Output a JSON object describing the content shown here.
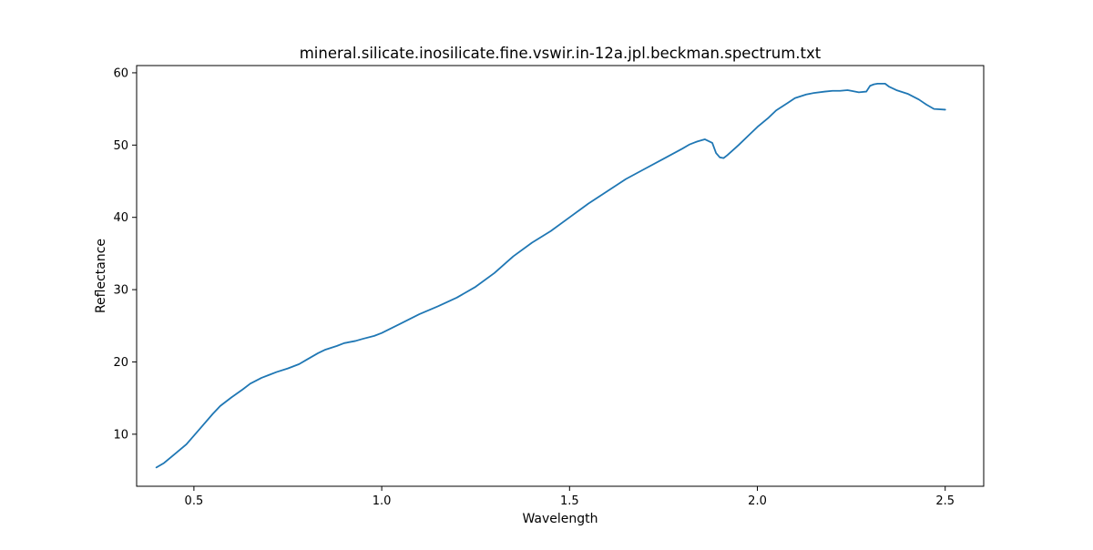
{
  "chart_data": {
    "type": "line",
    "title": "mineral.silicate.inosilicate.fine.vswir.in-12a.jpl.beckman.spectrum.txt",
    "xlabel": "Wavelength",
    "ylabel": "Reflectance",
    "xlim": [
      0.3475,
      2.6025
    ],
    "ylim": [
      2.8,
      61.0
    ],
    "xticks": [
      0.5,
      1.0,
      1.5,
      2.0,
      2.5
    ],
    "xtick_labels": [
      "0.5",
      "1.0",
      "1.5",
      "2.0",
      "2.5"
    ],
    "yticks": [
      10,
      20,
      30,
      40,
      50,
      60
    ],
    "ytick_labels": [
      "10",
      "20",
      "30",
      "40",
      "50",
      "60"
    ],
    "grid": false,
    "series": [
      {
        "color": "#1f77b4",
        "x": [
          0.4,
          0.42,
          0.45,
          0.48,
          0.5,
          0.52,
          0.55,
          0.57,
          0.6,
          0.63,
          0.65,
          0.68,
          0.7,
          0.72,
          0.75,
          0.78,
          0.8,
          0.83,
          0.85,
          0.88,
          0.9,
          0.93,
          0.95,
          0.98,
          1.0,
          1.05,
          1.1,
          1.15,
          1.2,
          1.25,
          1.3,
          1.35,
          1.4,
          1.45,
          1.5,
          1.55,
          1.6,
          1.65,
          1.7,
          1.75,
          1.8,
          1.82,
          1.84,
          1.86,
          1.88,
          1.89,
          1.9,
          1.91,
          1.92,
          1.95,
          1.98,
          2.0,
          2.03,
          2.05,
          2.08,
          2.1,
          2.13,
          2.15,
          2.18,
          2.2,
          2.22,
          2.24,
          2.25,
          2.27,
          2.29,
          2.3,
          2.31,
          2.32,
          2.34,
          2.35,
          2.37,
          2.4,
          2.43,
          2.45,
          2.47,
          2.5
        ],
        "y": [
          5.4,
          6.0,
          7.3,
          8.6,
          9.8,
          11.0,
          12.8,
          13.9,
          15.1,
          16.2,
          17.0,
          17.8,
          18.2,
          18.6,
          19.1,
          19.7,
          20.3,
          21.2,
          21.7,
          22.2,
          22.6,
          22.9,
          23.2,
          23.6,
          24.0,
          25.3,
          26.6,
          27.7,
          28.9,
          30.4,
          32.3,
          34.6,
          36.5,
          38.1,
          40.0,
          41.9,
          43.6,
          45.3,
          46.7,
          48.1,
          49.5,
          50.1,
          50.5,
          50.8,
          50.3,
          48.9,
          48.3,
          48.2,
          48.6,
          50.0,
          51.5,
          52.5,
          53.8,
          54.8,
          55.8,
          56.5,
          57.0,
          57.2,
          57.4,
          57.5,
          57.5,
          57.6,
          57.5,
          57.3,
          57.4,
          58.2,
          58.4,
          58.5,
          58.5,
          58.1,
          57.6,
          57.1,
          56.3,
          55.6,
          55.0,
          54.9
        ]
      }
    ]
  }
}
